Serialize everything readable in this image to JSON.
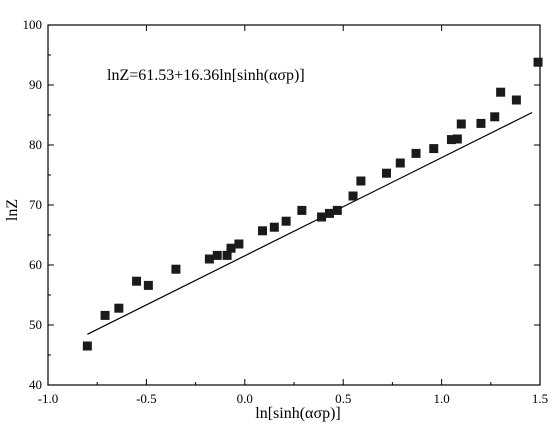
{
  "chart_data": {
    "type": "scatter",
    "xlabel": "ln[sinh(ασp)]",
    "ylabel": "lnZ",
    "xlim": [
      -1.0,
      1.5
    ],
    "ylim": [
      40,
      100
    ],
    "xticks": [
      "-1.0",
      "-0.5",
      "0.0",
      "0.5",
      "1.0",
      "1.5"
    ],
    "yticks": [
      "40",
      "50",
      "60",
      "70",
      "80",
      "90",
      "100"
    ],
    "grid": false,
    "legend": "none",
    "annotation": "lnZ=61.53+16.36ln[sinh(ασp)]",
    "fit_line": {
      "intercept": 61.53,
      "slope": 16.36,
      "x_range": [
        -0.8,
        1.46
      ]
    },
    "marker": "square",
    "colors": {
      "points": "#1a1a1a",
      "line": "#000000",
      "axes": "#000000"
    },
    "points": [
      {
        "x": -0.8,
        "y": 46.5
      },
      {
        "x": -0.71,
        "y": 51.6
      },
      {
        "x": -0.64,
        "y": 52.8
      },
      {
        "x": -0.55,
        "y": 57.3
      },
      {
        "x": -0.49,
        "y": 56.6
      },
      {
        "x": -0.35,
        "y": 59.3
      },
      {
        "x": -0.18,
        "y": 61.0
      },
      {
        "x": -0.14,
        "y": 61.6
      },
      {
        "x": -0.09,
        "y": 61.6
      },
      {
        "x": -0.07,
        "y": 62.8
      },
      {
        "x": -0.03,
        "y": 63.5
      },
      {
        "x": 0.09,
        "y": 65.7
      },
      {
        "x": 0.15,
        "y": 66.3
      },
      {
        "x": 0.21,
        "y": 67.3
      },
      {
        "x": 0.29,
        "y": 69.1
      },
      {
        "x": 0.39,
        "y": 68.0
      },
      {
        "x": 0.43,
        "y": 68.6
      },
      {
        "x": 0.47,
        "y": 69.1
      },
      {
        "x": 0.55,
        "y": 71.5
      },
      {
        "x": 0.59,
        "y": 74.0
      },
      {
        "x": 0.72,
        "y": 75.3
      },
      {
        "x": 0.79,
        "y": 77.0
      },
      {
        "x": 0.87,
        "y": 78.6
      },
      {
        "x": 0.96,
        "y": 79.4
      },
      {
        "x": 1.05,
        "y": 80.9
      },
      {
        "x": 1.08,
        "y": 81.0
      },
      {
        "x": 1.1,
        "y": 83.5
      },
      {
        "x": 1.2,
        "y": 83.6
      },
      {
        "x": 1.27,
        "y": 84.7
      },
      {
        "x": 1.3,
        "y": 88.8
      },
      {
        "x": 1.38,
        "y": 87.5
      },
      {
        "x": 1.49,
        "y": 93.8
      }
    ]
  }
}
